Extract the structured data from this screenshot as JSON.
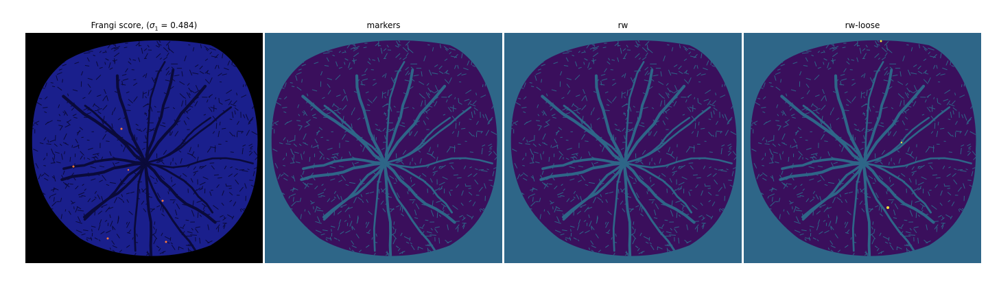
{
  "panels": [
    {
      "title_prefix": "Frangi score, (",
      "title_symbol": "σ",
      "title_subscript": "1",
      "title_suffix": " = 0.484)",
      "background": "#000000",
      "blob_fill": "#1a1f8c",
      "vessel_color": "#0a0a3a",
      "highlight_color": "#ff7a3a",
      "colormap": "plasma-like"
    },
    {
      "title": "markers",
      "background": "#2e6688",
      "blob_fill": "#3a0f5c",
      "vessel_color": "#2e6688",
      "colormap": "viridis"
    },
    {
      "title": "rw",
      "background": "#2e6688",
      "blob_fill": "#3a0f5c",
      "vessel_color": "#2e6688",
      "colormap": "viridis"
    },
    {
      "title": "rw-loose",
      "background": "#2e6688",
      "blob_fill": "#3a0f5c",
      "vessel_color": "#2e6688",
      "highlight_color": "#f5e43a",
      "colormap": "viridis"
    }
  ]
}
